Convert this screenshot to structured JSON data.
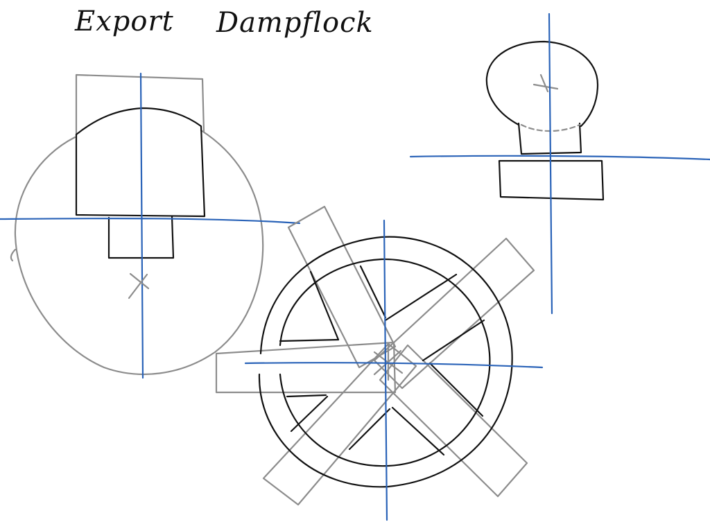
{
  "title": {
    "word1": "Export",
    "word2": "Dampflock"
  },
  "colors": {
    "outline": "#111111",
    "construction": "#8c8c8c",
    "axis": "#2a63b8",
    "background": "#ffffff"
  },
  "views": [
    {
      "name": "left-view",
      "shapes": [
        "rounded-dome-block",
        "stem-rectangle",
        "large-construction-circle",
        "center-cross"
      ]
    },
    {
      "name": "top-right-view",
      "shapes": [
        "balloon-cap",
        "dashed-collar",
        "base-plate"
      ]
    },
    {
      "name": "center-view",
      "shapes": [
        "outer-ring",
        "inner-ring",
        "four-spokes",
        "construction-arms"
      ]
    }
  ]
}
